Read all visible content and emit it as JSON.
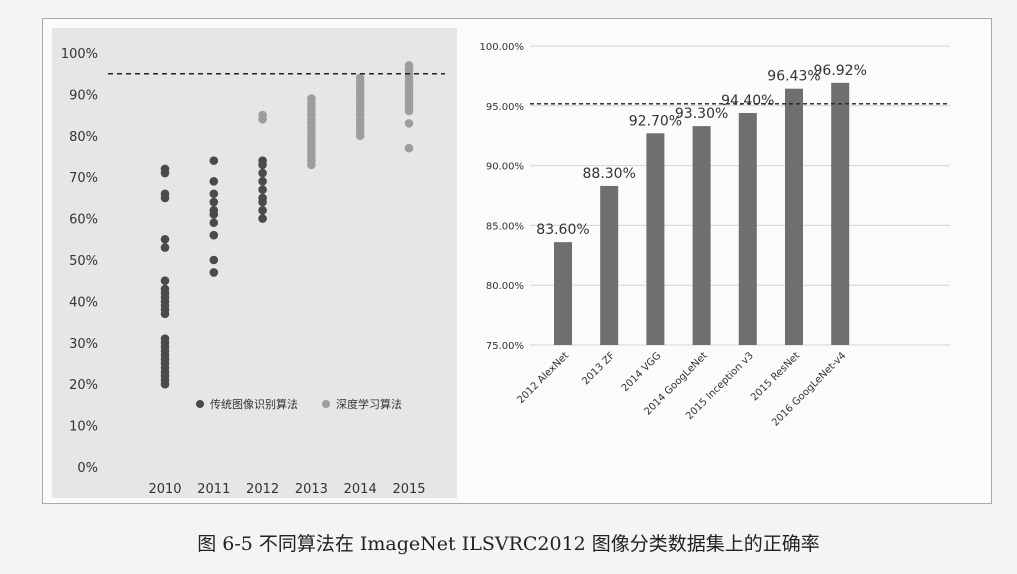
{
  "caption": "图 6-5   不同算法在 ImageNet ILSVRC2012 图像分类数据集上的正确率",
  "chart_data": [
    {
      "type": "scatter",
      "title": "",
      "xlabel": "",
      "ylabel": "",
      "x_ticks": [
        "2010",
        "2011",
        "2012",
        "2013",
        "2014",
        "2015"
      ],
      "y_ticks": [
        "0%",
        "10%",
        "20%",
        "30%",
        "40%",
        "50%",
        "60%",
        "70%",
        "80%",
        "90%",
        "100%"
      ],
      "ylim": [
        0,
        100
      ],
      "reference_line": 95,
      "grid": false,
      "legend_position": "bottom-right",
      "series": [
        {
          "name": "传统图像识别算法",
          "color": "#4a4a4a",
          "points": [
            {
              "x": "2010",
              "y": 72
            },
            {
              "x": "2010",
              "y": 71
            },
            {
              "x": "2010",
              "y": 66
            },
            {
              "x": "2010",
              "y": 65
            },
            {
              "x": "2010",
              "y": 55
            },
            {
              "x": "2010",
              "y": 53
            },
            {
              "x": "2010",
              "y": 45
            },
            {
              "x": "2010",
              "y": 43
            },
            {
              "x": "2010",
              "y": 42
            },
            {
              "x": "2010",
              "y": 41
            },
            {
              "x": "2010",
              "y": 40
            },
            {
              "x": "2010",
              "y": 39
            },
            {
              "x": "2010",
              "y": 38
            },
            {
              "x": "2010",
              "y": 37
            },
            {
              "x": "2010",
              "y": 31
            },
            {
              "x": "2010",
              "y": 30
            },
            {
              "x": "2010",
              "y": 29
            },
            {
              "x": "2010",
              "y": 28
            },
            {
              "x": "2010",
              "y": 27
            },
            {
              "x": "2010",
              "y": 26
            },
            {
              "x": "2010",
              "y": 25
            },
            {
              "x": "2010",
              "y": 24
            },
            {
              "x": "2010",
              "y": 23
            },
            {
              "x": "2010",
              "y": 22
            },
            {
              "x": "2010",
              "y": 21
            },
            {
              "x": "2010",
              "y": 20
            },
            {
              "x": "2011",
              "y": 74
            },
            {
              "x": "2011",
              "y": 69
            },
            {
              "x": "2011",
              "y": 66
            },
            {
              "x": "2011",
              "y": 64
            },
            {
              "x": "2011",
              "y": 62
            },
            {
              "x": "2011",
              "y": 61
            },
            {
              "x": "2011",
              "y": 59
            },
            {
              "x": "2011",
              "y": 56
            },
            {
              "x": "2011",
              "y": 50
            },
            {
              "x": "2011",
              "y": 47
            },
            {
              "x": "2012",
              "y": 74
            },
            {
              "x": "2012",
              "y": 73
            },
            {
              "x": "2012",
              "y": 71
            },
            {
              "x": "2012",
              "y": 69
            },
            {
              "x": "2012",
              "y": 67
            },
            {
              "x": "2012",
              "y": 65
            },
            {
              "x": "2012",
              "y": 64
            },
            {
              "x": "2012",
              "y": 62
            },
            {
              "x": "2012",
              "y": 60
            }
          ]
        },
        {
          "name": "深度学习算法",
          "color": "#9d9d9d",
          "points": [
            {
              "x": "2012",
              "y": 85
            },
            {
              "x": "2012",
              "y": 84
            },
            {
              "x": "2013",
              "y": 89
            },
            {
              "x": "2013",
              "y": 88
            },
            {
              "x": "2013",
              "y": 87
            },
            {
              "x": "2013",
              "y": 86
            },
            {
              "x": "2013",
              "y": 85
            },
            {
              "x": "2013",
              "y": 84
            },
            {
              "x": "2013",
              "y": 83
            },
            {
              "x": "2013",
              "y": 82
            },
            {
              "x": "2013",
              "y": 81
            },
            {
              "x": "2013",
              "y": 80
            },
            {
              "x": "2013",
              "y": 79
            },
            {
              "x": "2013",
              "y": 78
            },
            {
              "x": "2013",
              "y": 77
            },
            {
              "x": "2013",
              "y": 76
            },
            {
              "x": "2013",
              "y": 75
            },
            {
              "x": "2013",
              "y": 74
            },
            {
              "x": "2013",
              "y": 73
            },
            {
              "x": "2014",
              "y": 94
            },
            {
              "x": "2014",
              "y": 93
            },
            {
              "x": "2014",
              "y": 92
            },
            {
              "x": "2014",
              "y": 91
            },
            {
              "x": "2014",
              "y": 90
            },
            {
              "x": "2014",
              "y": 89
            },
            {
              "x": "2014",
              "y": 88
            },
            {
              "x": "2014",
              "y": 87
            },
            {
              "x": "2014",
              "y": 86
            },
            {
              "x": "2014",
              "y": 85
            },
            {
              "x": "2014",
              "y": 84
            },
            {
              "x": "2014",
              "y": 83
            },
            {
              "x": "2014",
              "y": 82
            },
            {
              "x": "2014",
              "y": 81
            },
            {
              "x": "2014",
              "y": 80
            },
            {
              "x": "2015",
              "y": 97
            },
            {
              "x": "2015",
              "y": 96
            },
            {
              "x": "2015",
              "y": 95
            },
            {
              "x": "2015",
              "y": 94
            },
            {
              "x": "2015",
              "y": 93
            },
            {
              "x": "2015",
              "y": 92
            },
            {
              "x": "2015",
              "y": 91
            },
            {
              "x": "2015",
              "y": 90
            },
            {
              "x": "2015",
              "y": 89
            },
            {
              "x": "2015",
              "y": 88
            },
            {
              "x": "2015",
              "y": 87
            },
            {
              "x": "2015",
              "y": 86
            },
            {
              "x": "2015",
              "y": 83
            },
            {
              "x": "2015",
              "y": 77
            }
          ]
        }
      ]
    },
    {
      "type": "bar",
      "title": "",
      "xlabel": "",
      "ylabel": "",
      "categories": [
        "2012 AlexNet",
        "2013 ZF",
        "2014 VGG",
        "2014 GoogLeNet",
        "2015 Inception v3",
        "2015 ResNet",
        "2016 GoogLeNet-v4"
      ],
      "values": [
        83.6,
        88.3,
        92.7,
        93.3,
        94.4,
        96.43,
        96.92
      ],
      "value_labels": [
        "83.60%",
        "88.30%",
        "92.70%",
        "93.30%",
        "94.40%",
        "96.43%",
        "96.92%"
      ],
      "y_ticks": [
        "75.00%",
        "80.00%",
        "85.00%",
        "90.00%",
        "95.00%",
        "100.00%"
      ],
      "ylim": [
        75,
        100
      ],
      "reference_line": 95,
      "grid": true,
      "bar_color": "#6f6f6f"
    }
  ]
}
